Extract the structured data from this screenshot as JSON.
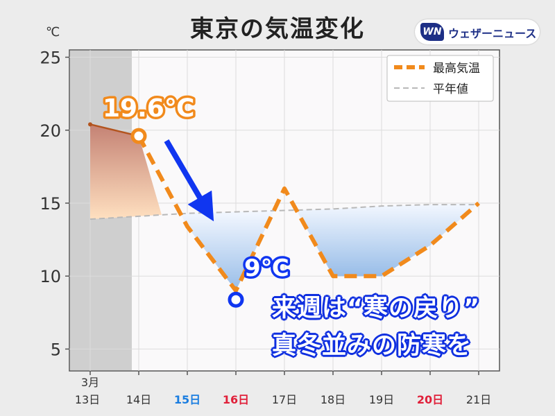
{
  "header": {
    "title": "東京の気温変化",
    "unit": "℃",
    "logo_mark": "WN",
    "logo_text": "ウェザーニュース"
  },
  "colors": {
    "max_temp": "#f18a1c",
    "normal": "#b8b8b8",
    "saturday": "#1a7de0",
    "sunday": "#e0203a",
    "arrow": "#1036f0",
    "low_marker": "#1036f0"
  },
  "chart_data": {
    "type": "line",
    "x_ticks": [
      {
        "top": "3月",
        "bottom": "13日",
        "color": "default"
      },
      {
        "top": "",
        "bottom": "14日",
        "color": "default"
      },
      {
        "top": "",
        "bottom": "15日",
        "color": "saturday"
      },
      {
        "top": "",
        "bottom": "16日",
        "color": "sunday"
      },
      {
        "top": "",
        "bottom": "17日",
        "color": "default"
      },
      {
        "top": "",
        "bottom": "18日",
        "color": "default"
      },
      {
        "top": "",
        "bottom": "19日",
        "color": "default"
      },
      {
        "top": "",
        "bottom": "20日",
        "color": "sunday"
      },
      {
        "top": "",
        "bottom": "21日",
        "color": "default"
      }
    ],
    "ylim": [
      3.5,
      25.5
    ],
    "yticks": [
      5,
      10,
      15,
      20,
      25
    ],
    "series": [
      {
        "name": "最高気温",
        "style": "dashed",
        "values": [
          20.4,
          19.6,
          13.4,
          9.0,
          16.0,
          10.0,
          10.0,
          12.1,
          15.0
        ]
      },
      {
        "name": "平年値",
        "style": "dashed",
        "values": [
          13.9,
          14.1,
          14.3,
          14.4,
          14.5,
          14.6,
          14.8,
          14.9,
          14.9
        ]
      }
    ],
    "observed_range": [
      "13日",
      "14日"
    ],
    "annotations": [
      {
        "label": "19.6℃",
        "x": "14日",
        "y": 19.6
      },
      {
        "label": "9℃",
        "x": "16日",
        "y": 9.0
      }
    ],
    "legend_position": "top-right",
    "grid": true
  },
  "callout": {
    "line1": "来週は“寒の戻り”",
    "line2": "真冬並みの防寒を"
  }
}
